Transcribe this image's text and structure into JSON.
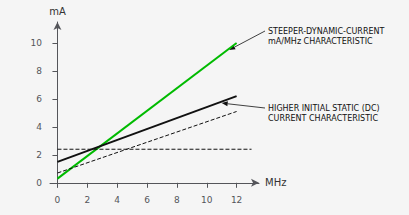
{
  "chart_data": {
    "type": "line",
    "xlabel": "MHz",
    "ylabel": "mA",
    "xlim": [
      -0.5,
      13.5
    ],
    "ylim": [
      -0.3,
      11.5
    ],
    "xticks": [
      0,
      2,
      4,
      6,
      8,
      10,
      12
    ],
    "yticks": [
      0,
      2,
      4,
      6,
      8,
      10
    ],
    "grid": false,
    "series": [
      {
        "x": [
          0,
          12
        ],
        "values": [
          0.3,
          10.0
        ],
        "color": "#00bb00",
        "line_style": "solid"
      },
      {
        "x": [
          0,
          12
        ],
        "values": [
          1.5,
          6.2
        ],
        "color": "#111111",
        "line_style": "solid"
      },
      {
        "x": [
          0,
          12
        ],
        "values": [
          0.7,
          5.1
        ],
        "color": "#111111",
        "line_style": "dashed"
      },
      {
        "x": [
          0,
          13
        ],
        "values": [
          2.4,
          2.4
        ],
        "color": "#111111",
        "line_style": "dashed"
      }
    ],
    "annotations": [
      {
        "text": "STEEPER-DYNAMIC-CURRENT\nmA/MHz CHARACTERISTIC",
        "xy": [
          11.5,
          9.5
        ]
      },
      {
        "text": "HIGHER INITIAL STATIC (DC)\nCURRENT CHARACTERISTIC",
        "xy": [
          11.0,
          5.7
        ]
      }
    ]
  }
}
